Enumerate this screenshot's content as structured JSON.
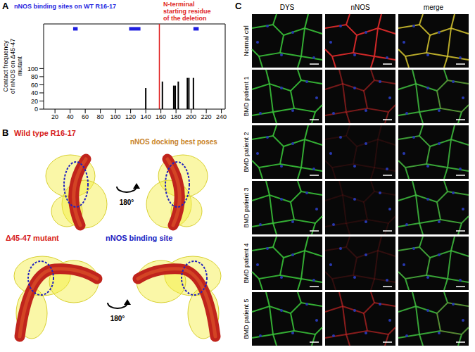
{
  "panel_labels": [
    "A",
    "B",
    "C"
  ],
  "chart_data": {
    "type": "bar",
    "y_label": "Contact frequency of nNOS on Δ45-47 mutant",
    "x": [
      140,
      162,
      177,
      179,
      183,
      195,
      197,
      203
    ],
    "values": [
      52,
      68,
      58,
      58,
      68,
      77,
      77,
      77
    ],
    "color": "#000000",
    "xlim": [
      5,
      245
    ],
    "xticks": [
      20,
      40,
      60,
      80,
      100,
      120,
      140,
      160,
      180,
      200,
      220,
      240
    ],
    "ylim": [
      0,
      210
    ],
    "yticks": [
      0,
      20,
      40,
      60,
      80,
      100
    ],
    "annotations": [
      {
        "text": "nNOS binding sites on WT R16-17",
        "color": "#1f1fe0",
        "segments": [
          [
            44,
            50
          ],
          [
            118,
            133
          ],
          [
            203,
            210
          ]
        ],
        "y": 198
      },
      {
        "text": "N-terminal starting residue of the deletion",
        "color": "#e01f1f",
        "x": 158
      }
    ]
  },
  "panel_B": {
    "wild_type": {
      "title": "Wild type R16-17",
      "docking_label": "nNOS docking best poses",
      "rotation": "180°"
    },
    "mutant": {
      "title": "Δ45-47 mutant",
      "binding_label": "nNOS binding site",
      "rotation": "180°"
    }
  },
  "panel_C": {
    "columns": [
      "DYS",
      "nNOS",
      "merge"
    ],
    "rows": [
      "Normal ctrl",
      "BMD patient 1",
      "BMD patient 2",
      "BMD patient 3",
      "BMD patient 4",
      "BMD patient 5"
    ]
  }
}
